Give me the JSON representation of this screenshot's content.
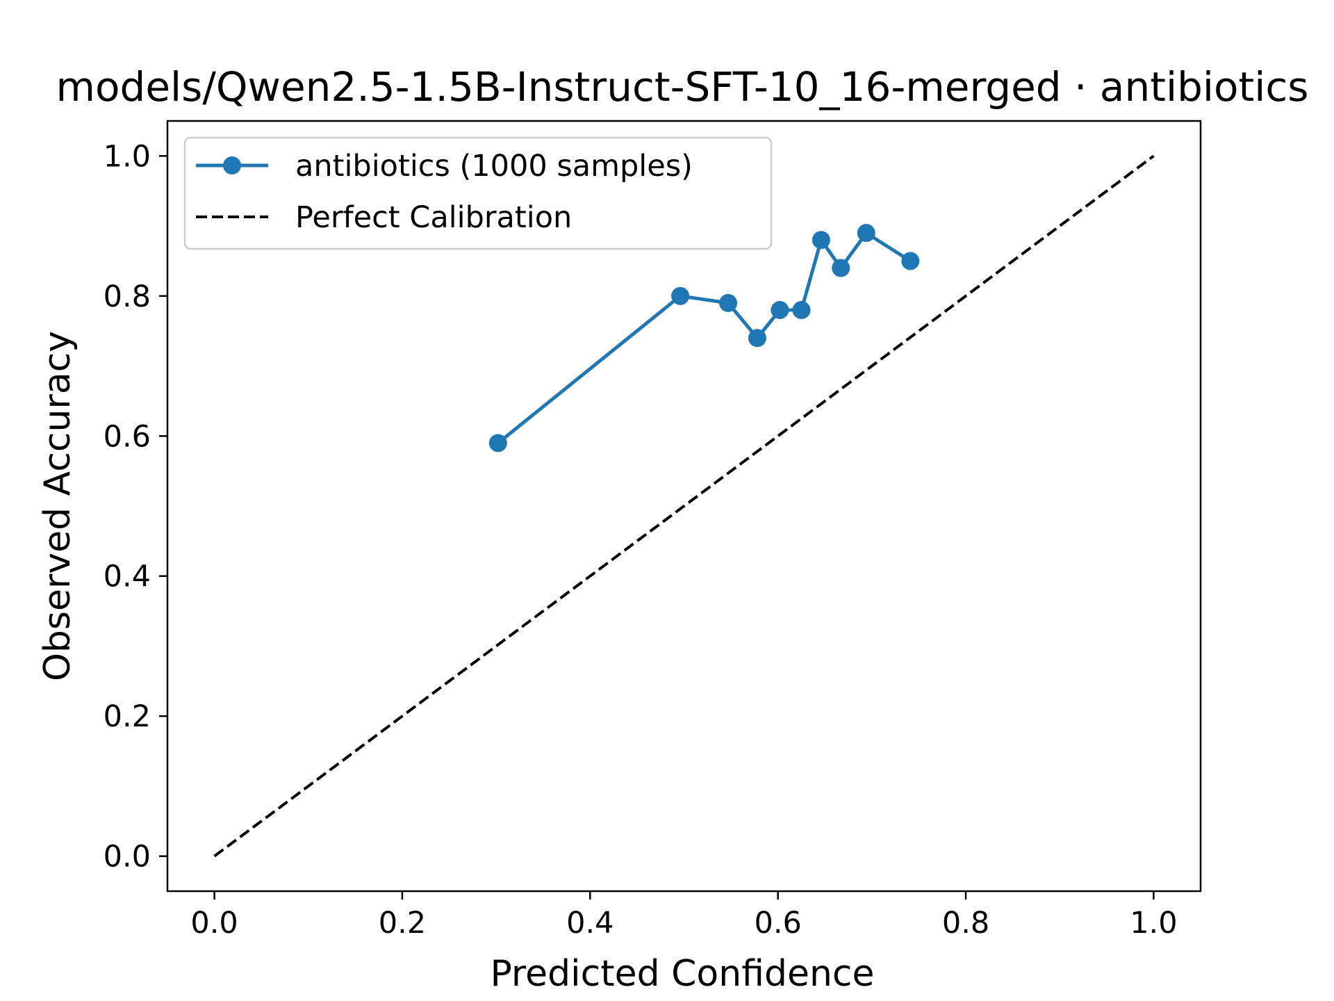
{
  "chart_data": {
    "type": "line",
    "title": "models/Qwen2.5-1.5B-Instruct-SFT-10_16-merged · antibiotics",
    "xlabel": "Predicted Confidence",
    "ylabel": "Observed Accuracy",
    "xlim": [
      -0.05,
      1.05
    ],
    "ylim": [
      -0.05,
      1.05
    ],
    "x_ticks": [
      "0.0",
      "0.2",
      "0.4",
      "0.6",
      "0.8",
      "1.0"
    ],
    "y_ticks": [
      "0.0",
      "0.2",
      "0.4",
      "0.6",
      "0.8",
      "1.0"
    ],
    "grid": false,
    "legend_position": "upper-left",
    "series": [
      {
        "name": "antibiotics (1000 samples)",
        "style": "solid-with-markers",
        "color": "#1f77b4",
        "x": [
          0.302,
          0.496,
          0.547,
          0.578,
          0.602,
          0.625,
          0.646,
          0.667,
          0.694,
          0.741
        ],
        "y": [
          0.59,
          0.8,
          0.79,
          0.74,
          0.78,
          0.78,
          0.88,
          0.84,
          0.89,
          0.85
        ]
      },
      {
        "name": "Perfect Calibration",
        "style": "dashed",
        "color": "#000000",
        "x": [
          0.0,
          1.0
        ],
        "y": [
          0.0,
          1.0
        ]
      }
    ]
  }
}
